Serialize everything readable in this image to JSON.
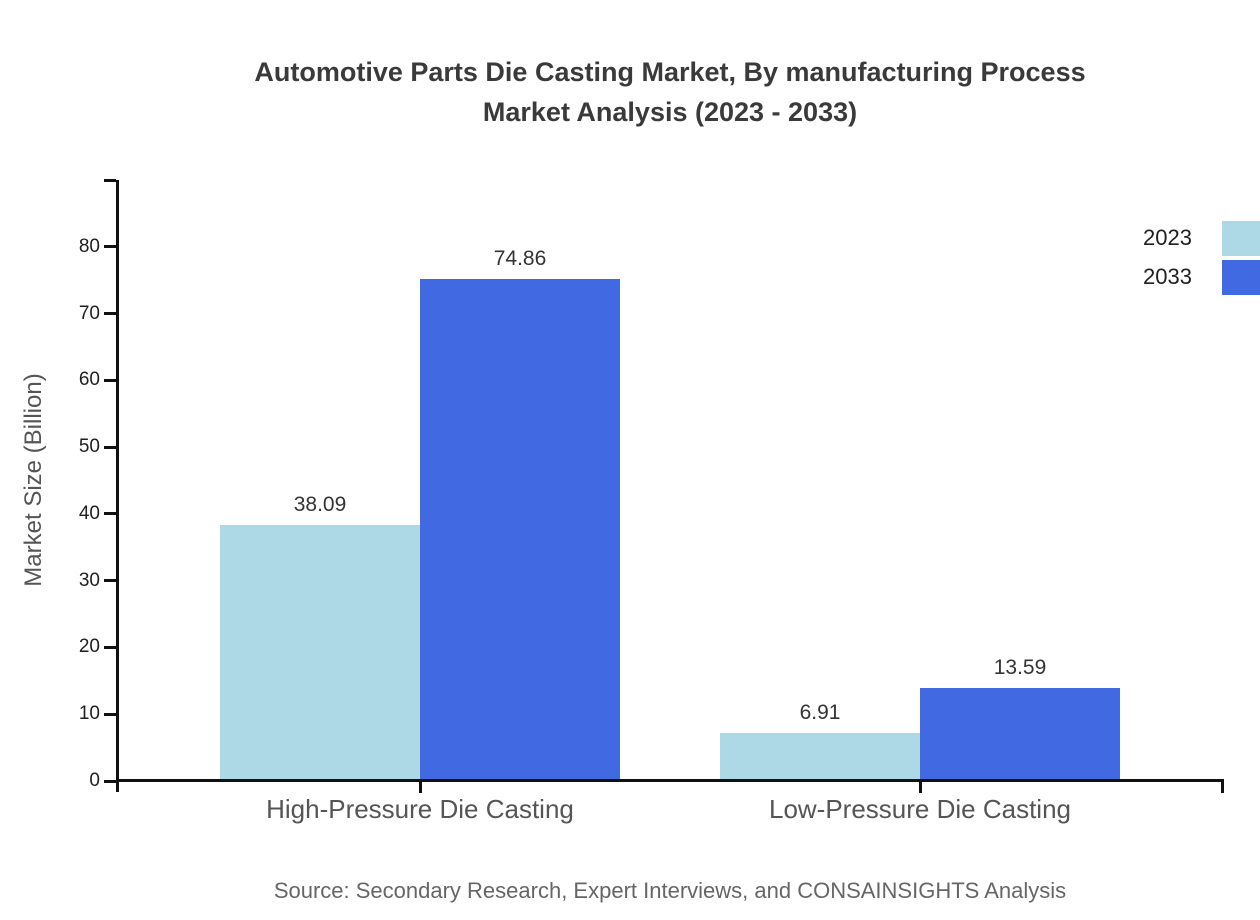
{
  "title": {
    "line1": "Automotive Parts Die Casting Market, By manufacturing Process",
    "line2": "Market Analysis (2023 - 2033)"
  },
  "source_text": "Source: Secondary Research, Expert Interviews, and CONSAINSIGHTS Analysis",
  "colors": {
    "series_2023": "#ADD8E6",
    "series_2033": "#4169E1",
    "axis": "#111111",
    "title_text": "#3a3a3a",
    "category_text": "#555555",
    "source_text": "#666666"
  },
  "chart_data": {
    "type": "bar",
    "title": "Automotive Parts Die Casting Market, By manufacturing Process Market Analysis (2023 - 2033)",
    "categories": [
      "High-Pressure Die Casting",
      "Low-Pressure Die Casting"
    ],
    "series": [
      {
        "name": "2023",
        "color": "#ADD8E6",
        "values": [
          38.09,
          6.91
        ]
      },
      {
        "name": "2033",
        "color": "#4169E1",
        "values": [
          74.86,
          13.59
        ]
      }
    ],
    "value_labels": [
      "38.09",
      "74.86",
      "6.91",
      "13.59"
    ],
    "xlabel": "",
    "ylabel": "Market Size (Billion)",
    "ylim": [
      0,
      90
    ],
    "yticks": [
      0,
      10,
      20,
      30,
      40,
      50,
      60,
      70,
      80
    ],
    "grid": false,
    "legend_position": "top-right",
    "legend_entries": [
      "2023",
      "2033"
    ]
  }
}
